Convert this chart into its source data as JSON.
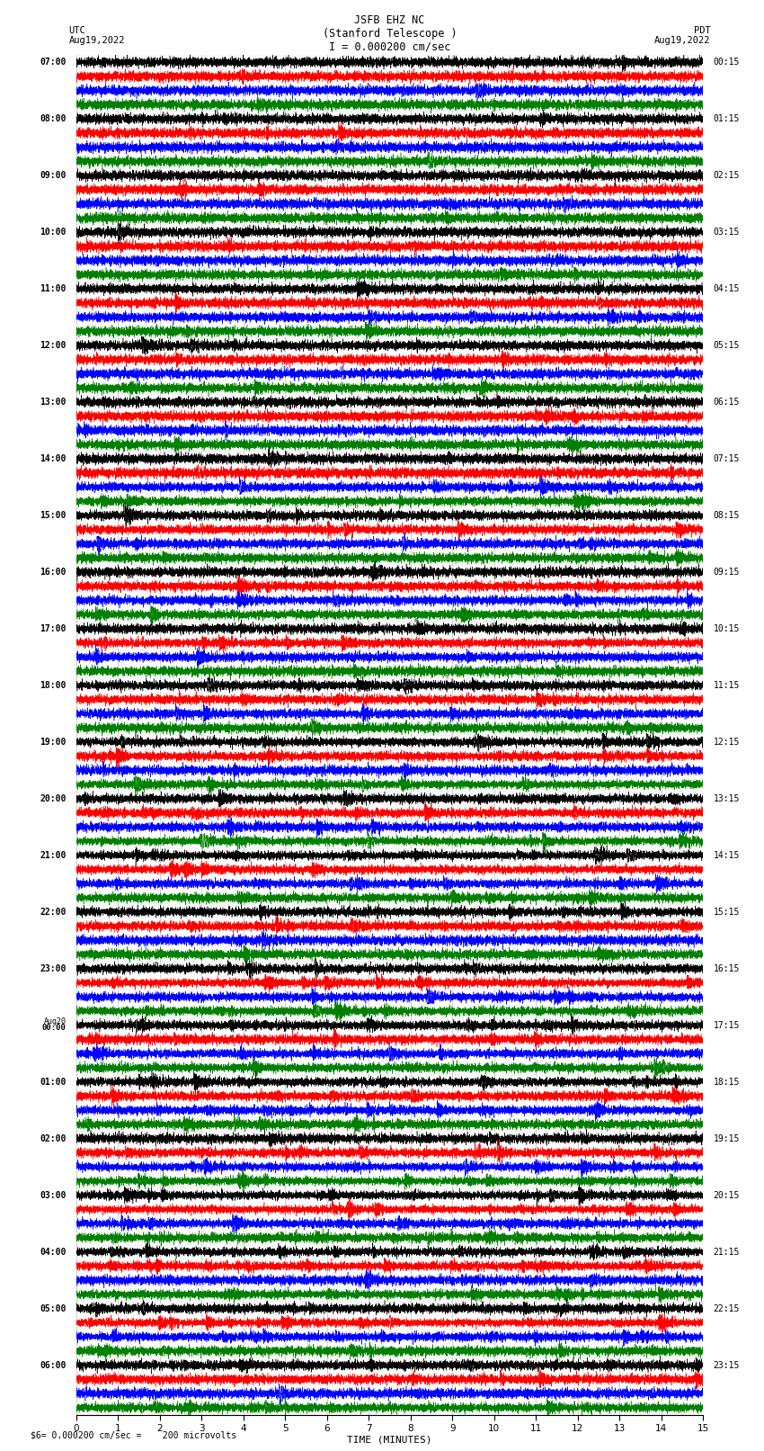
{
  "title_line1": "JSFB EHZ NC",
  "title_line2": "(Stanford Telescope )",
  "title_line3": "I = 0.000200 cm/sec",
  "left_label_top": "UTC",
  "left_label_date": "Aug19,2022",
  "right_label_top": "PDT",
  "right_label_date": "Aug19,2022",
  "bottom_label": "TIME (MINUTES)",
  "bottom_note": "= 0.000200 cm/sec =    200 microvolts",
  "colors": [
    "black",
    "red",
    "blue",
    "green"
  ],
  "utc_times": [
    "07:00",
    "08:00",
    "09:00",
    "10:00",
    "11:00",
    "12:00",
    "13:00",
    "14:00",
    "15:00",
    "16:00",
    "17:00",
    "18:00",
    "19:00",
    "20:00",
    "21:00",
    "22:00",
    "23:00",
    "Aug20\n00:00",
    "01:00",
    "02:00",
    "03:00",
    "04:00",
    "05:00",
    "06:00"
  ],
  "pdt_times": [
    "00:15",
    "01:15",
    "02:15",
    "03:15",
    "04:15",
    "05:15",
    "06:15",
    "07:15",
    "08:15",
    "09:15",
    "10:15",
    "11:15",
    "12:15",
    "13:15",
    "14:15",
    "15:15",
    "16:15",
    "17:15",
    "18:15",
    "19:15",
    "20:15",
    "21:15",
    "22:15",
    "23:15"
  ],
  "n_rows": 24,
  "n_traces_per_row": 4,
  "x_min": 0,
  "x_max": 15,
  "bg_color": "white",
  "plot_bg": "white",
  "seed": 12345
}
